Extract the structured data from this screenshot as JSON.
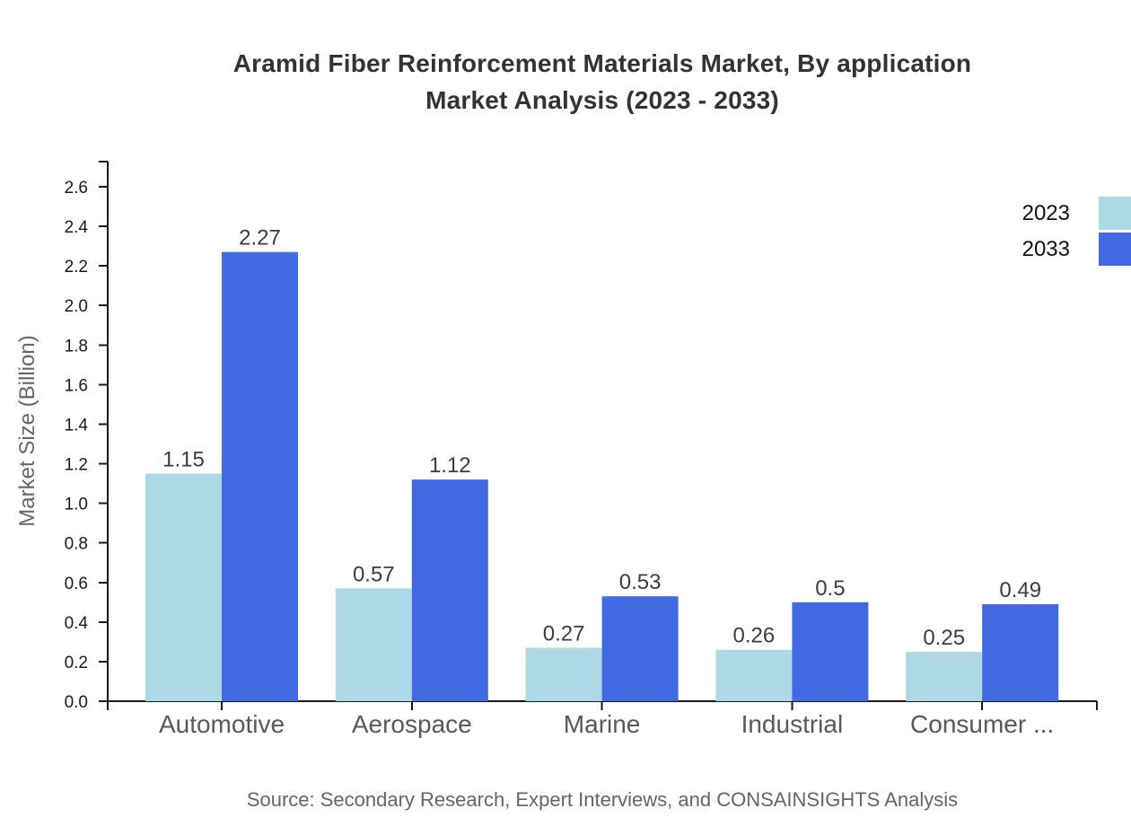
{
  "chart_data": {
    "type": "bar",
    "title_lines": [
      "Aramid Fiber Reinforcement Materials Market, By application",
      "Market Analysis (2023 - 2033)"
    ],
    "categories": [
      "Automotive",
      "Aerospace",
      "Marine",
      "Industrial",
      "Consumer ..."
    ],
    "series": [
      {
        "name": "2023",
        "color": "#ADD8E6",
        "values": [
          1.15,
          0.57,
          0.27,
          0.26,
          0.25
        ]
      },
      {
        "name": "2033",
        "color": "#4169E1",
        "values": [
          2.27,
          1.12,
          0.53,
          0.5,
          0.49
        ]
      }
    ],
    "xlabel": "",
    "ylabel": "Market Size (Billion)",
    "ylim": [
      0,
      2.72
    ],
    "ytick_labels": [
      "0.0",
      "0.2",
      "0.4",
      "0.6",
      "0.8",
      "1.0",
      "1.2",
      "1.4",
      "1.6",
      "1.8",
      "2.0",
      "2.2",
      "2.4",
      "2.6"
    ],
    "grid": false,
    "legend_position": "upper-right",
    "value_labels": true
  },
  "source_note": "Source: Secondary Research, Expert Interviews, and CONSAINSIGHTS Analysis"
}
